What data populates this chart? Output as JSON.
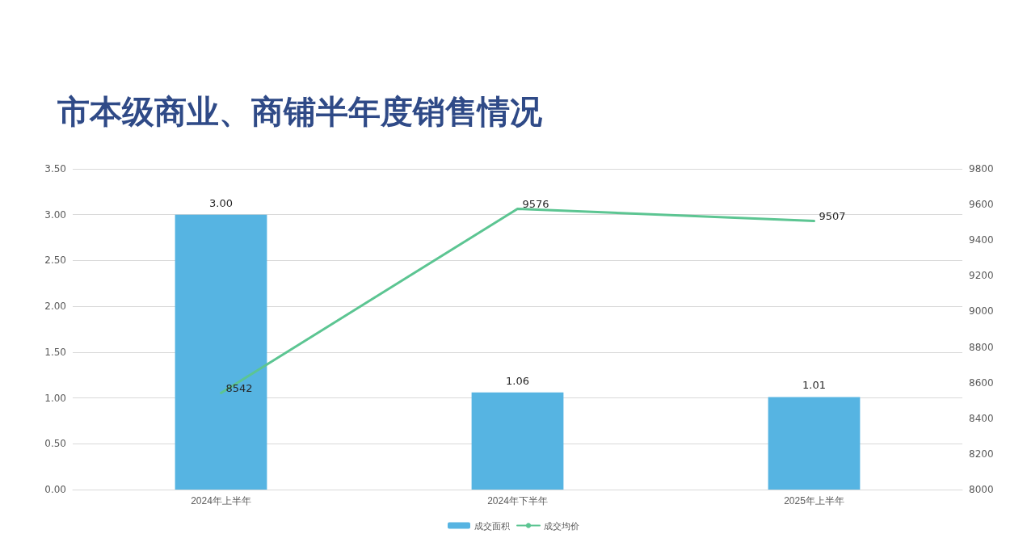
{
  "chart_data": {
    "type": "bar",
    "title": "市本级商业、商铺半年度销售情况",
    "categories": [
      "2024年上半年",
      "2024年下半年",
      "2025年上半年"
    ],
    "series": [
      {
        "name": "成交面积",
        "color": "#56b4e2",
        "values": [
          3.0,
          1.06,
          1.01
        ],
        "value_labels": [
          "3.00",
          "1.06",
          "1.01"
        ]
      },
      {
        "name": "成交均价",
        "type": "line",
        "axis": "y2",
        "color": "#5cc592",
        "values": [
          8542,
          9576,
          9507
        ],
        "value_labels": [
          "8542",
          "9576",
          "9507"
        ]
      }
    ],
    "ylim": [
      0,
      3.5
    ],
    "yticks": [
      {
        "value": 0,
        "label": "0.00"
      },
      {
        "value": 0.5,
        "label": "0.50"
      },
      {
        "value": 1,
        "label": "1.00"
      },
      {
        "value": 1.5,
        "label": "1.50"
      },
      {
        "value": 2,
        "label": "2.00"
      },
      {
        "value": 2.5,
        "label": "2.50"
      },
      {
        "value": 3,
        "label": "3.00"
      },
      {
        "value": 3.5,
        "label": "3.50"
      }
    ],
    "y2lim": [
      8000,
      9800
    ],
    "y2ticks": [
      8000,
      8200,
      8400,
      8600,
      8800,
      9000,
      9200,
      9400,
      9600,
      9800
    ],
    "grid": "y",
    "legend": "bottom",
    "marker": "none",
    "line_style": "solid"
  }
}
